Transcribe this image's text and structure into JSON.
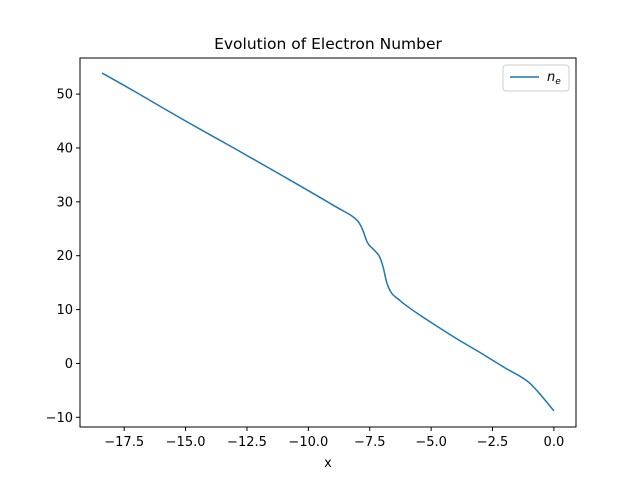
{
  "chart_data": {
    "type": "line",
    "title": "Evolution of Electron Number",
    "xlabel": "x",
    "ylabel": "",
    "xlim": [
      -19.3,
      0.9
    ],
    "ylim": [
      -11.8,
      56.7
    ],
    "x_ticks": [
      -17.5,
      -15.0,
      -12.5,
      -10.0,
      -7.5,
      -5.0,
      -2.5,
      0.0
    ],
    "x_tick_labels": [
      "−17.5",
      "−15.0",
      "−12.5",
      "−10.0",
      "−7.5",
      "−5.0",
      "−2.5",
      "0.0"
    ],
    "y_ticks": [
      -10,
      0,
      10,
      20,
      30,
      40,
      50
    ],
    "y_tick_labels": [
      "−10",
      "0",
      "10",
      "20",
      "30",
      "40",
      "50"
    ],
    "grid": false,
    "legend_position": "top-right",
    "series": [
      {
        "name_main": "n",
        "name_sub": "e",
        "color": "#1f77b4",
        "x": [
          -18.4,
          -17.0,
          -15.0,
          -13.0,
          -11.0,
          -9.0,
          -8.0,
          -7.6,
          -7.4,
          -7.25,
          -7.1,
          -6.95,
          -6.8,
          -6.6,
          -6.3,
          -6.0,
          -5.5,
          -5.0,
          -4.0,
          -3.0,
          -2.0,
          -1.0,
          0.0
        ],
        "y": [
          53.9,
          50.3,
          45.0,
          39.9,
          34.7,
          29.4,
          26.5,
          22.5,
          21.4,
          20.7,
          19.8,
          17.8,
          14.9,
          13.0,
          11.8,
          10.7,
          9.1,
          7.6,
          4.7,
          2.0,
          -0.8,
          -3.6,
          -8.8
        ]
      }
    ]
  }
}
